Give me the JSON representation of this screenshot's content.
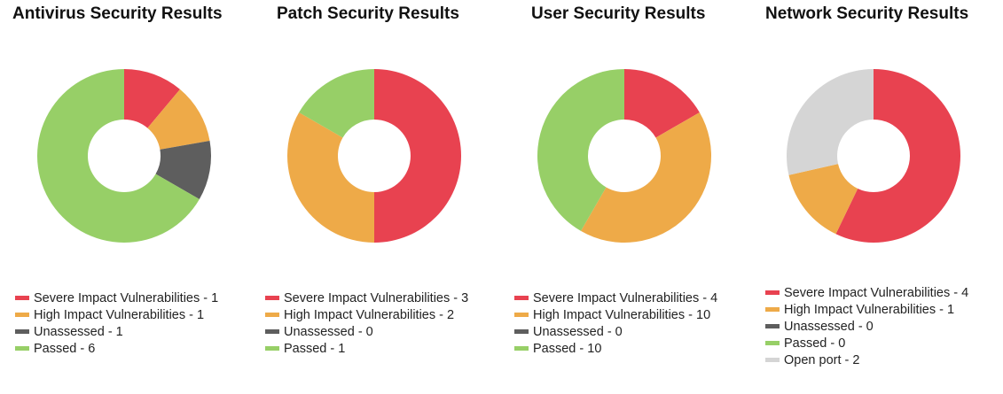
{
  "chart_data": [
    {
      "type": "pie",
      "title": "Antivirus Security Results",
      "slices": [
        {
          "label": "Severe Impact Vulnerabilities",
          "value": 1,
          "color": "#e84250"
        },
        {
          "label": "High Impact Vulnerabilities",
          "value": 1,
          "color": "#eeaa48"
        },
        {
          "label": "Unassessed",
          "value": 1,
          "color": "#5e5e5e"
        },
        {
          "label": "Passed",
          "value": 6,
          "color": "#97cf67"
        }
      ],
      "legend": [
        {
          "text": "Severe Impact Vulnerabilities - 1",
          "color": "#e84250"
        },
        {
          "text": "High Impact Vulnerabilities - 1",
          "color": "#eeaa48"
        },
        {
          "text": "Unassessed - 1",
          "color": "#5e5e5e"
        },
        {
          "text": "Passed - 6",
          "color": "#97cf67"
        }
      ]
    },
    {
      "type": "pie",
      "title": "Patch Security Results",
      "slices": [
        {
          "label": "Severe Impact Vulnerabilities",
          "value": 3,
          "color": "#e84250"
        },
        {
          "label": "High Impact Vulnerabilities",
          "value": 2,
          "color": "#eeaa48"
        },
        {
          "label": "Unassessed",
          "value": 0,
          "color": "#5e5e5e"
        },
        {
          "label": "Passed",
          "value": 1,
          "color": "#97cf67"
        }
      ],
      "legend": [
        {
          "text": "Severe Impact Vulnerabilities - 3",
          "color": "#e84250"
        },
        {
          "text": "High Impact Vulnerabilities - 2",
          "color": "#eeaa48"
        },
        {
          "text": "Unassessed - 0",
          "color": "#5e5e5e"
        },
        {
          "text": "Passed - 1",
          "color": "#97cf67"
        }
      ]
    },
    {
      "type": "pie",
      "title": "User Security Results",
      "slices": [
        {
          "label": "Severe Impact Vulnerabilities",
          "value": 4,
          "color": "#e84250"
        },
        {
          "label": "High Impact Vulnerabilities",
          "value": 10,
          "color": "#eeaa48"
        },
        {
          "label": "Unassessed",
          "value": 0,
          "color": "#5e5e5e"
        },
        {
          "label": "Passed",
          "value": 10,
          "color": "#97cf67"
        }
      ],
      "legend": [
        {
          "text": "Severe Impact Vulnerabilities - 4",
          "color": "#e84250"
        },
        {
          "text": "High Impact Vulnerabilities - 10",
          "color": "#eeaa48"
        },
        {
          "text": "Unassessed - 0",
          "color": "#5e5e5e"
        },
        {
          "text": "Passed - 10",
          "color": "#97cf67"
        }
      ]
    },
    {
      "type": "pie",
      "title": "Network Security Results",
      "slices": [
        {
          "label": "Severe Impact Vulnerabilities",
          "value": 4,
          "color": "#e84250"
        },
        {
          "label": "High Impact Vulnerabilities",
          "value": 1,
          "color": "#eeaa48"
        },
        {
          "label": "Unassessed",
          "value": 0,
          "color": "#5e5e5e"
        },
        {
          "label": "Passed",
          "value": 0,
          "color": "#97cf67"
        },
        {
          "label": "Open port",
          "value": 2,
          "color": "#d5d5d5"
        }
      ],
      "legend": [
        {
          "text": "Severe Impact Vulnerabilities - 4",
          "color": "#e84250"
        },
        {
          "text": "High Impact Vulnerabilities - 1",
          "color": "#eeaa48"
        },
        {
          "text": "Unassessed - 0",
          "color": "#5e5e5e"
        },
        {
          "text": "Passed - 0",
          "color": "#97cf67"
        },
        {
          "text": "Open port - 2",
          "color": "#d5d5d5"
        }
      ]
    }
  ]
}
